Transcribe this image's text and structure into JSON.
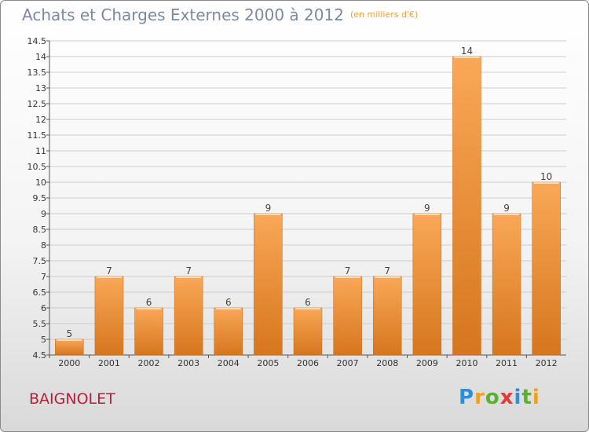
{
  "title": "Achats et Charges Externes 2000 à 2012",
  "subtitle": "(en milliers d'€)",
  "city": "BAIGNOLET",
  "brand": {
    "text": "Proxiti",
    "letter_colors": [
      "#2e8fd6",
      "#f0a020",
      "#5ab030",
      "#e03a3a",
      "#2e8fd6",
      "#5ab030",
      "#f0a020"
    ]
  },
  "colors": {
    "bar_top": "#f9a857",
    "bar_bottom": "#d6761e",
    "gridline": "#cccccc"
  },
  "chart_data": {
    "type": "bar",
    "title": "Achats et Charges Externes 2000 à 2012",
    "categories": [
      "2000",
      "2001",
      "2002",
      "2003",
      "2004",
      "2005",
      "2006",
      "2007",
      "2008",
      "2009",
      "2010",
      "2011",
      "2012"
    ],
    "values": [
      5,
      7,
      6,
      7,
      6,
      9,
      6,
      7,
      7,
      9,
      14,
      9,
      10
    ],
    "ylim": [
      4.5,
      14.5
    ],
    "yticks": [
      "4.5",
      "5",
      "5.5",
      "6",
      "6.5",
      "7",
      "7.5",
      "8",
      "8.5",
      "9",
      "9.5",
      "10",
      "10.5",
      "11",
      "11.5",
      "12",
      "12.5",
      "13",
      "13.5",
      "14",
      "14.5"
    ],
    "grid": true,
    "legend": "none"
  }
}
